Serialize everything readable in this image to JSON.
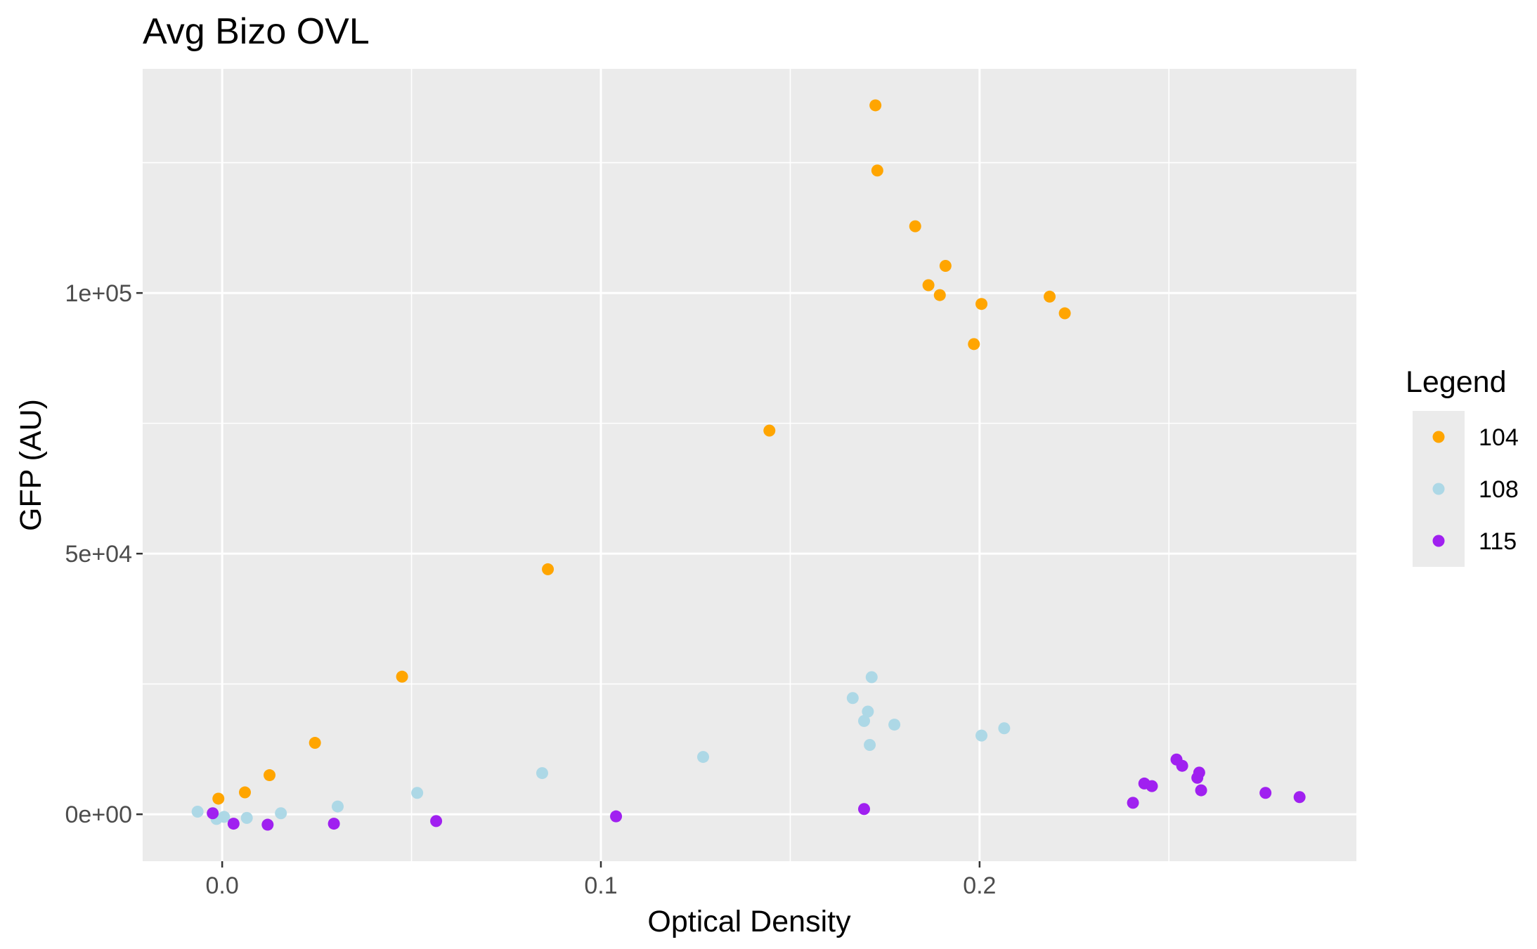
{
  "chart_data": {
    "type": "scatter",
    "title": "Avg Bizo OVL",
    "xlabel": "Optical Density",
    "ylabel": "GFP (AU)",
    "xlim": [
      -0.021,
      0.2995
    ],
    "ylim": [
      -9000,
      143000
    ],
    "x_ticks": [
      {
        "value": 0.0,
        "label": "0.0"
      },
      {
        "value": 0.1,
        "label": "0.1"
      },
      {
        "value": 0.2,
        "label": "0.2"
      }
    ],
    "y_ticks": [
      {
        "value": 0,
        "label": "0e+00"
      },
      {
        "value": 50000,
        "label": "5e+04"
      },
      {
        "value": 100000,
        "label": "1e+05"
      }
    ],
    "x_minor": [
      -0.05,
      0.05,
      0.15,
      0.25
    ],
    "y_minor": [
      -25000,
      25000,
      75000,
      125000
    ],
    "grid": true,
    "panel_background": "#EBEBEB",
    "grid_color": "#FFFFFF",
    "legend": {
      "title": "Legend",
      "position": "right"
    },
    "series": [
      {
        "name": "104",
        "color": "#FFA500",
        "points": [
          [
            -0.001,
            3000
          ],
          [
            0.006,
            4200
          ],
          [
            0.0125,
            7500
          ],
          [
            0.0245,
            13700
          ],
          [
            0.0475,
            26400
          ],
          [
            0.086,
            47000
          ],
          [
            0.1445,
            73600
          ],
          [
            0.1725,
            136000
          ],
          [
            0.173,
            123500
          ],
          [
            0.183,
            112800
          ],
          [
            0.1865,
            101500
          ],
          [
            0.1895,
            99600
          ],
          [
            0.191,
            105200
          ],
          [
            0.1985,
            90200
          ],
          [
            0.2005,
            97900
          ],
          [
            0.2185,
            99300
          ],
          [
            0.2225,
            96100
          ]
        ]
      },
      {
        "name": "108",
        "color": "#ADD8E6",
        "points": [
          [
            -0.0065,
            500
          ],
          [
            -0.0015,
            -900
          ],
          [
            0.0005,
            -500
          ],
          [
            0.0065,
            -700
          ],
          [
            0.0155,
            200
          ],
          [
            0.0305,
            1500
          ],
          [
            0.0515,
            4100
          ],
          [
            0.0845,
            7900
          ],
          [
            0.127,
            11000
          ],
          [
            0.1665,
            22300
          ],
          [
            0.1695,
            17900
          ],
          [
            0.1705,
            19700
          ],
          [
            0.171,
            13300
          ],
          [
            0.1715,
            26300
          ],
          [
            0.1775,
            17200
          ],
          [
            0.2005,
            15100
          ],
          [
            0.2065,
            16500
          ]
        ]
      },
      {
        "name": "115",
        "color": "#A020F0",
        "points": [
          [
            -0.0025,
            200
          ],
          [
            0.003,
            -1800
          ],
          [
            0.012,
            -2000
          ],
          [
            0.0295,
            -1800
          ],
          [
            0.0565,
            -1300
          ],
          [
            0.104,
            -400
          ],
          [
            0.1695,
            1000
          ],
          [
            0.2405,
            2200
          ],
          [
            0.2435,
            5900
          ],
          [
            0.2455,
            5400
          ],
          [
            0.252,
            10500
          ],
          [
            0.2535,
            9300
          ],
          [
            0.2575,
            7000
          ],
          [
            0.258,
            8000
          ],
          [
            0.2585,
            4600
          ],
          [
            0.2755,
            4100
          ],
          [
            0.2845,
            3300
          ]
        ]
      }
    ]
  }
}
